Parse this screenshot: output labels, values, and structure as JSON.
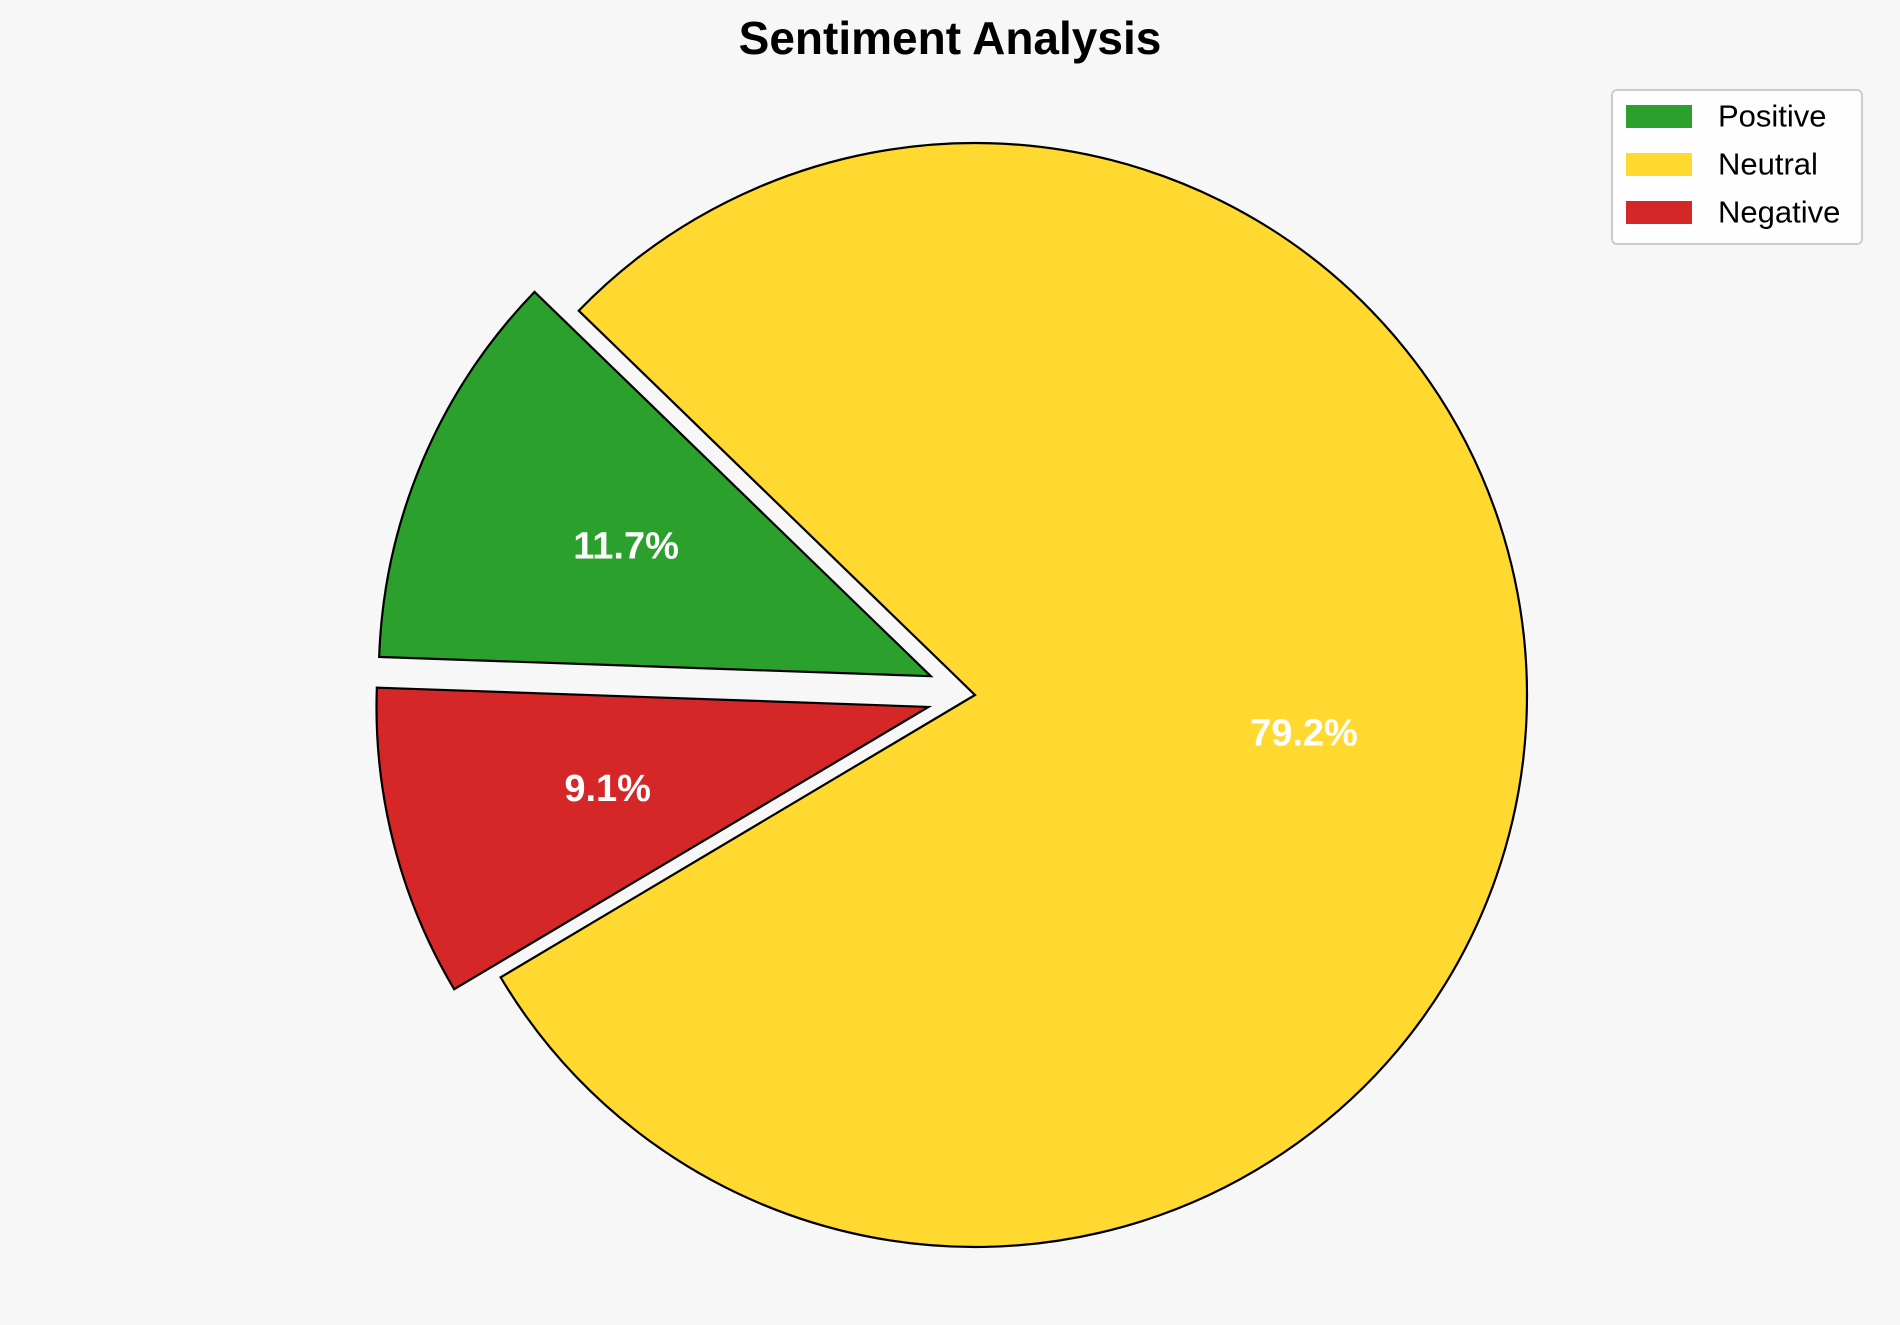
{
  "chart_data": {
    "type": "pie",
    "title": "Sentiment Analysis",
    "slices": [
      {
        "label": "Positive",
        "value": 11.7,
        "display": "11.7%",
        "color": "#2ca02c",
        "exploded": true
      },
      {
        "label": "Neutral",
        "value": 79.2,
        "display": "79.2%",
        "color": "#ffd92f",
        "exploded": false
      },
      {
        "label": "Negative",
        "value": 9.1,
        "display": "9.1%",
        "color": "#d62728",
        "exploded": true
      }
    ],
    "start_angle_deg": 178,
    "direction": "clockwise",
    "legend": {
      "position": "top-right",
      "entries": [
        "Positive",
        "Neutral",
        "Negative"
      ]
    },
    "edge_color": "#000000",
    "background": "#f7f7f7"
  }
}
